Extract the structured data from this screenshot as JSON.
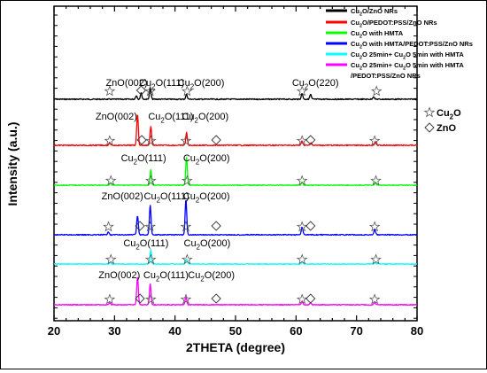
{
  "chart_data": {
    "type": "line",
    "title": "",
    "xlabel": "2THETA (degree)",
    "ylabel": "Intensity (a.u.)",
    "xlim": [
      20,
      80
    ],
    "x_ticks": [
      "20",
      "30",
      "40",
      "50",
      "60",
      "70",
      "80"
    ],
    "y_tick_labels": false,
    "legend_position": "top-right",
    "series": [
      {
        "name": "Cu2O/ZnO NRs",
        "color": "#000000",
        "baseline": 0.58,
        "peaks": [
          [
            33.6,
            0.35
          ],
          [
            34.4,
            0.6
          ],
          [
            35.9,
            1.0
          ],
          [
            41.9,
            0.45
          ],
          [
            61.0,
            0.55
          ],
          [
            62.4,
            0.45
          ],
          [
            72.8,
            0.25
          ]
        ],
        "peak_scale": 12
      },
      {
        "name": "Cu2O/PEDOT:PSS/ZnO NRs",
        "color": "#ff0000",
        "baseline": 0.55,
        "peaks": [
          [
            29.2,
            0.08
          ],
          [
            33.8,
            1.0
          ],
          [
            36.0,
            0.6
          ],
          [
            41.9,
            0.4
          ],
          [
            61.0,
            0.14
          ],
          [
            62.5,
            0.08
          ],
          [
            73.1,
            0.12
          ]
        ],
        "peak_scale": 36
      },
      {
        "name": "Cu2O with HMTA",
        "color": "#00ff00",
        "baseline": 0.4,
        "peaks": [
          [
            29.3,
            0.08
          ],
          [
            36.0,
            0.55
          ],
          [
            41.9,
            1.0
          ],
          [
            61.0,
            0.12
          ],
          [
            73.1,
            0.1
          ]
        ],
        "peak_scale": 32
      },
      {
        "name": "Cu2O with HMTA/PEDOT:PSS/ZnO NRs",
        "color": "#0000ff",
        "baseline": 0.5,
        "peaks": [
          [
            29.0,
            0.08
          ],
          [
            33.8,
            0.55
          ],
          [
            35.9,
            0.85
          ],
          [
            41.8,
            1.0
          ],
          [
            61.0,
            0.22
          ],
          [
            73.0,
            0.16
          ]
        ],
        "peak_scale": 40
      },
      {
        "name": "Cu2O 25min+ Cu2O 5min with HMTA",
        "color": "#00ffff",
        "baseline": 0.35,
        "peaks": [
          [
            29.3,
            0.1
          ],
          [
            36.0,
            1.0
          ],
          [
            41.9,
            0.35
          ],
          [
            61.0,
            0.15
          ],
          [
            73.1,
            0.08
          ]
        ],
        "peak_scale": 16
      },
      {
        "name": "Cu2O 25min+ Cu2O 5min with HMTA /PEDOT:PSS/ZnO NRs",
        "color": "#ff00ff",
        "baseline": 0.45,
        "peaks": [
          [
            29.2,
            0.08
          ],
          [
            33.8,
            1.0
          ],
          [
            35.9,
            0.75
          ],
          [
            41.8,
            0.28
          ],
          [
            61.0,
            0.12
          ],
          [
            62.4,
            0.08
          ],
          [
            73.0,
            0.08
          ]
        ],
        "peak_scale": 32
      }
    ],
    "annotations": [
      {
        "text": "ZnO(002)",
        "x": 32.0,
        "series": 0
      },
      {
        "text": "Cu2O(111)",
        "x": 37.8,
        "series": 0
      },
      {
        "text": "Cu2O(200)",
        "x": 44.3,
        "series": 0
      },
      {
        "text": "Cu2O(220)",
        "x": 63.2,
        "series": 0
      },
      {
        "text": "ZnO(002)",
        "x": 30.3,
        "series": 1
      },
      {
        "text": "Cu2O(111)",
        "x": 39.3,
        "series": 1
      },
      {
        "text": "Cu2O(200)",
        "x": 45.0,
        "series": 1
      },
      {
        "text": "Cu2O(111)",
        "x": 34.8,
        "series": 2
      },
      {
        "text": "Cu2O(200)",
        "x": 45.2,
        "series": 2
      },
      {
        "text": "ZnO(002)",
        "x": 31.3,
        "series": 3
      },
      {
        "text": "Cu2O(111)",
        "x": 38.6,
        "series": 3
      },
      {
        "text": "Cu2O(200)",
        "x": 45.2,
        "series": 3
      },
      {
        "text": "Cu2O(111)",
        "x": 35.2,
        "series": 4
      },
      {
        "text": "Cu2O(200)",
        "x": 45.3,
        "series": 4
      },
      {
        "text": "ZnO(002)",
        "x": 30.8,
        "series": 5
      },
      {
        "text": "Cu2O(111)",
        "x": 38.5,
        "series": 5
      },
      {
        "text": "Cu2O(200)",
        "x": 46.0,
        "series": 5
      }
    ],
    "markers": [
      {
        "symbol": "star",
        "x": 29.2,
        "series": 0
      },
      {
        "symbol": "diamond",
        "x": 34.4,
        "series": 0
      },
      {
        "symbol": "star",
        "x": 35.9,
        "series": 0
      },
      {
        "symbol": "star",
        "x": 42.0,
        "series": 0
      },
      {
        "symbol": "star",
        "x": 61.0,
        "series": 0
      },
      {
        "symbol": "star",
        "x": 73.3,
        "series": 0
      },
      {
        "symbol": "star",
        "x": 29.2,
        "series": 1
      },
      {
        "symbol": "diamond",
        "x": 34.5,
        "series": 1
      },
      {
        "symbol": "star",
        "x": 36.0,
        "series": 1
      },
      {
        "symbol": "star",
        "x": 41.8,
        "series": 1
      },
      {
        "symbol": "diamond",
        "x": 46.8,
        "series": 1
      },
      {
        "symbol": "star",
        "x": 61.0,
        "series": 1
      },
      {
        "symbol": "diamond",
        "x": 62.4,
        "series": 1
      },
      {
        "symbol": "star",
        "x": 73.0,
        "series": 1
      },
      {
        "symbol": "star",
        "x": 29.4,
        "series": 2
      },
      {
        "symbol": "star",
        "x": 36.0,
        "series": 2
      },
      {
        "symbol": "star",
        "x": 42.0,
        "series": 2
      },
      {
        "symbol": "star",
        "x": 61.0,
        "series": 2
      },
      {
        "symbol": "star",
        "x": 73.2,
        "series": 2
      },
      {
        "symbol": "star",
        "x": 29.0,
        "series": 3
      },
      {
        "symbol": "diamond",
        "x": 34.2,
        "series": 3
      },
      {
        "symbol": "star",
        "x": 35.9,
        "series": 3
      },
      {
        "symbol": "star",
        "x": 41.8,
        "series": 3
      },
      {
        "symbol": "diamond",
        "x": 46.8,
        "series": 3
      },
      {
        "symbol": "star",
        "x": 61.0,
        "series": 3
      },
      {
        "symbol": "diamond",
        "x": 62.4,
        "series": 3
      },
      {
        "symbol": "star",
        "x": 73.0,
        "series": 3
      },
      {
        "symbol": "star",
        "x": 29.4,
        "series": 4
      },
      {
        "symbol": "star",
        "x": 36.0,
        "series": 4
      },
      {
        "symbol": "star",
        "x": 42.0,
        "series": 4
      },
      {
        "symbol": "star",
        "x": 61.0,
        "series": 4
      },
      {
        "symbol": "star",
        "x": 73.2,
        "series": 4
      },
      {
        "symbol": "star",
        "x": 29.2,
        "series": 5
      },
      {
        "symbol": "diamond",
        "x": 34.2,
        "series": 5
      },
      {
        "symbol": "star",
        "x": 36.0,
        "series": 5
      },
      {
        "symbol": "star",
        "x": 41.8,
        "series": 5
      },
      {
        "symbol": "diamond",
        "x": 46.8,
        "series": 5
      },
      {
        "symbol": "star",
        "x": 61.0,
        "series": 5
      },
      {
        "symbol": "diamond",
        "x": 62.4,
        "series": 5
      },
      {
        "symbol": "star",
        "x": 73.0,
        "series": 5
      }
    ],
    "symbol_key": [
      {
        "symbol": "star",
        "label": "Cu2O"
      },
      {
        "symbol": "diamond",
        "label": "ZnO"
      }
    ]
  }
}
